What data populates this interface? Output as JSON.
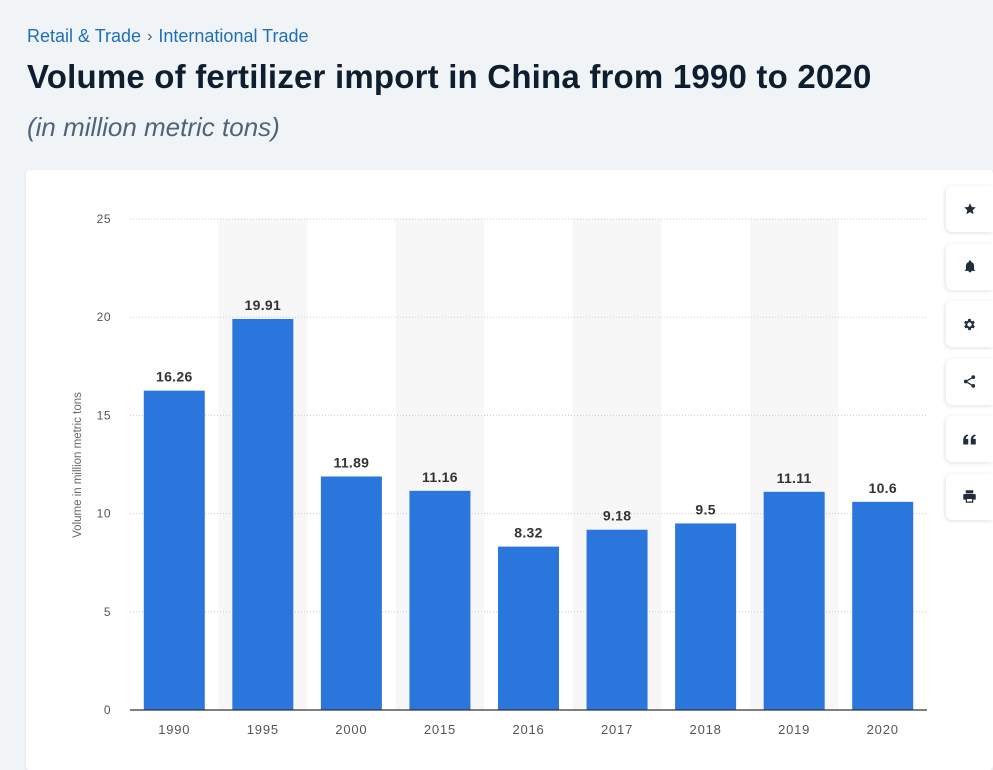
{
  "breadcrumb": {
    "items": [
      "Retail & Trade",
      "International Trade"
    ],
    "separator": "›"
  },
  "title": "Volume of fertilizer import in China from 1990 to 2020",
  "subtitle": "(in million metric tons)",
  "toolbar": {
    "icons": [
      "star-icon",
      "bell-icon",
      "gear-icon",
      "share-icon",
      "quote-icon",
      "print-icon"
    ]
  },
  "colors": {
    "bar": "#2a76dd",
    "grid": "#c9cdd2",
    "band": "#f7f7f7",
    "axis_text": "#555555",
    "label_text": "#333333"
  },
  "chart_data": {
    "type": "bar",
    "categories": [
      "1990",
      "1995",
      "2000",
      "2015",
      "2016",
      "2017",
      "2018",
      "2019",
      "2020"
    ],
    "values": [
      16.26,
      19.91,
      11.89,
      11.16,
      8.32,
      9.18,
      9.5,
      11.11,
      10.6
    ],
    "value_labels": [
      "16.26",
      "19.91",
      "11.89",
      "11.16",
      "8.32",
      "9.18",
      "9.5",
      "11.11",
      "10.6"
    ],
    "ylabel": "Volume in million metric tons",
    "ylim": [
      0,
      25
    ],
    "yticks": [
      "0",
      "5",
      "10",
      "15",
      "20",
      "25"
    ],
    "grid": true,
    "legend": "none"
  }
}
